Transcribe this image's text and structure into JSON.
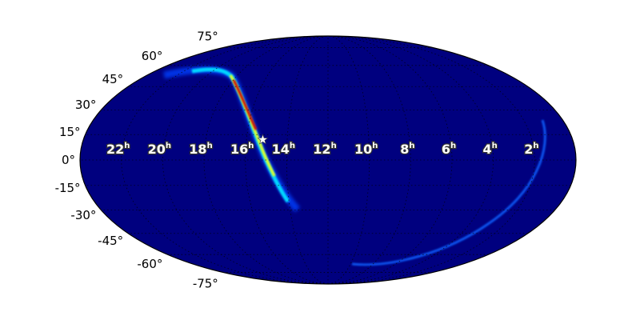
{
  "chart_data": {
    "type": "heatmap",
    "projection": "mollweide",
    "colormap": "jet",
    "background_color": "#00007f",
    "grid": true,
    "lat_tick_labels": [
      "75°",
      "60°",
      "45°",
      "30°",
      "15°",
      "0°",
      "-15°",
      "-30°",
      "-45°",
      "-60°",
      "-75°"
    ],
    "lat_ticks": [
      75,
      60,
      45,
      30,
      15,
      0,
      -15,
      -30,
      -45,
      -60,
      -75
    ],
    "ra_tick_labels": [
      "22",
      "20",
      "18",
      "16",
      "14",
      "12",
      "10",
      "8",
      "6",
      "4",
      "2"
    ],
    "ra_ticks_hours": [
      22,
      20,
      18,
      16,
      14,
      12,
      10,
      8,
      6,
      4,
      2
    ],
    "ra_unit": "h",
    "marker": {
      "symbol": "star",
      "ra_hours": 15.2,
      "dec": 12
    }
  }
}
